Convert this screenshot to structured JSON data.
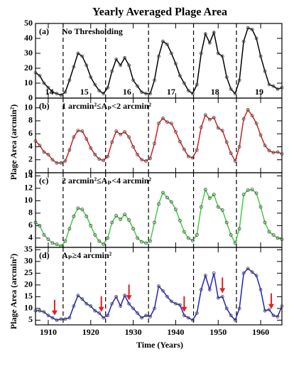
{
  "figure": {
    "title": "Yearly Averaged Plage Area",
    "xlabel": "Time (Years)",
    "ylabels": [
      "Plage Area (arcmin²)",
      "Plage Area (arcmin²)"
    ],
    "minima": [
      1913.5,
      1923.5,
      1933.6,
      1944.2,
      1954.3
    ],
    "cycles": [
      "14",
      "15",
      "16",
      "17",
      "18",
      "19"
    ]
  },
  "chart_data": [
    {
      "type": "line",
      "panel": "(a)",
      "label": "No Thresholding",
      "color": "#000000",
      "x": [
        1907,
        1908,
        1909,
        1910,
        1911,
        1912,
        1913,
        1914,
        1915,
        1916,
        1917,
        1918,
        1919,
        1920,
        1921,
        1922,
        1923,
        1924,
        1925,
        1926,
        1927,
        1928,
        1929,
        1930,
        1931,
        1932,
        1933,
        1934,
        1935,
        1936,
        1937,
        1938,
        1939,
        1940,
        1941,
        1942,
        1943,
        1944,
        1945,
        1946,
        1947,
        1948,
        1949,
        1950,
        1951,
        1952,
        1953,
        1954,
        1955,
        1956,
        1957,
        1958,
        1959,
        1960,
        1961,
        1962,
        1963,
        1964,
        1965
      ],
      "values": [
        17,
        15,
        10,
        7,
        4,
        3,
        2,
        4,
        12,
        21,
        30,
        28,
        22,
        14,
        9,
        5,
        3,
        7,
        18,
        26,
        22,
        27,
        22,
        12,
        8,
        4,
        3,
        3,
        12,
        28,
        38,
        36,
        30,
        23,
        15,
        10,
        5,
        3,
        9,
        30,
        43,
        37,
        44,
        30,
        28,
        14,
        6,
        3,
        12,
        38,
        47,
        46,
        40,
        28,
        18,
        9,
        8,
        6,
        7
      ],
      "xlim": [
        1907,
        1965
      ],
      "xticks": [
        1910,
        1920,
        1930,
        1940,
        1950,
        1960
      ],
      "ylim": [
        0,
        50
      ],
      "yticks": [
        0,
        10,
        20,
        30,
        40,
        50
      ]
    },
    {
      "type": "line",
      "panel": "(b)",
      "label": "1 arcmin²≤Aₚ<2 arcmin²",
      "color": "#cc2222",
      "x": [
        1907,
        1908,
        1909,
        1910,
        1911,
        1912,
        1913,
        1914,
        1915,
        1916,
        1917,
        1918,
        1919,
        1920,
        1921,
        1922,
        1923,
        1924,
        1925,
        1926,
        1927,
        1928,
        1929,
        1930,
        1931,
        1932,
        1933,
        1934,
        1935,
        1936,
        1937,
        1938,
        1939,
        1940,
        1941,
        1942,
        1943,
        1944,
        1945,
        1946,
        1947,
        1948,
        1949,
        1950,
        1951,
        1952,
        1953,
        1954,
        1955,
        1956,
        1957,
        1958,
        1959,
        1960,
        1961,
        1962,
        1963,
        1964,
        1965
      ],
      "values": [
        4.9,
        4.2,
        3.2,
        2.8,
        2.0,
        1.5,
        1.5,
        1.8,
        3.5,
        5.5,
        6.5,
        6.4,
        5.2,
        3.8,
        2.8,
        2.1,
        1.9,
        2.5,
        4.7,
        6.4,
        5.9,
        6.3,
        5.5,
        4.0,
        2.8,
        2.0,
        1.8,
        2.2,
        4.5,
        7.6,
        8.4,
        7.8,
        7.6,
        6.3,
        4.8,
        3.6,
        2.5,
        2.3,
        3.5,
        7.0,
        8.9,
        8.2,
        8.5,
        6.9,
        6.5,
        4.7,
        3.0,
        1.8,
        4.0,
        8.3,
        9.7,
        8.8,
        7.6,
        5.8,
        4.2,
        3.4,
        3.1,
        3.2,
        2.9
      ],
      "xlim": [
        1907,
        1965
      ],
      "xticks": [
        1910,
        1920,
        1930,
        1940,
        1950,
        1960
      ],
      "ylim": [
        0,
        11.5
      ],
      "yticks": [
        0,
        2,
        4,
        6,
        8,
        10
      ]
    },
    {
      "type": "line",
      "panel": "(c)",
      "label": "2 arcmin²≤Aₚ<4 arcmin²",
      "color": "#44cc44",
      "x": [
        1907,
        1908,
        1909,
        1910,
        1911,
        1912,
        1913,
        1914,
        1915,
        1916,
        1917,
        1918,
        1919,
        1920,
        1921,
        1922,
        1923,
        1924,
        1925,
        1926,
        1927,
        1928,
        1929,
        1930,
        1931,
        1932,
        1933,
        1934,
        1935,
        1936,
        1937,
        1938,
        1939,
        1940,
        1941,
        1942,
        1943,
        1944,
        1945,
        1946,
        1947,
        1948,
        1949,
        1950,
        1951,
        1952,
        1953,
        1954,
        1955,
        1956,
        1957,
        1958,
        1959,
        1960,
        1961,
        1962,
        1963,
        1964,
        1965
      ],
      "values": [
        6.5,
        6.0,
        4.5,
        3.8,
        3.2,
        3.0,
        2.7,
        3.5,
        5.5,
        7.5,
        8.8,
        8.6,
        7.5,
        6.0,
        4.5,
        3.5,
        3.0,
        4.0,
        6.5,
        7.6,
        7.0,
        7.8,
        6.9,
        5.5,
        4.0,
        3.4,
        3.2,
        3.5,
        6.5,
        9.5,
        11.3,
        10.5,
        9.8,
        8.6,
        6.8,
        5.0,
        4.0,
        3.6,
        4.5,
        9.0,
        11.8,
        10.4,
        11.0,
        9.0,
        8.5,
        6.5,
        4.5,
        3.2,
        5.5,
        11.0,
        11.7,
        11.8,
        11.2,
        9.0,
        6.5,
        5.0,
        4.5,
        4.0,
        3.8
      ],
      "xlim": [
        1907,
        1965
      ],
      "xticks": [
        1910,
        1920,
        1930,
        1940,
        1950,
        1960
      ],
      "ylim": [
        2.5,
        14.5
      ],
      "yticks": [
        4,
        6,
        8,
        10,
        12,
        14
      ]
    },
    {
      "type": "line",
      "panel": "(d)",
      "label": "Aₚ≥4 arcmin²",
      "color": "#2222bb",
      "x": [
        1907,
        1908,
        1909,
        1910,
        1911,
        1912,
        1913,
        1914,
        1915,
        1916,
        1917,
        1918,
        1919,
        1920,
        1921,
        1922,
        1923,
        1924,
        1925,
        1926,
        1927,
        1928,
        1929,
        1930,
        1931,
        1932,
        1933,
        1934,
        1935,
        1936,
        1937,
        1938,
        1939,
        1940,
        1941,
        1942,
        1943,
        1944,
        1945,
        1946,
        1947,
        1948,
        1949,
        1950,
        1951,
        1952,
        1953,
        1954,
        1955,
        1956,
        1957,
        1958,
        1959,
        1960,
        1961,
        1962,
        1963,
        1964,
        1965
      ],
      "values": [
        9,
        9,
        8.5,
        7,
        6,
        5,
        5.5,
        5.5,
        6,
        11,
        15.5,
        14,
        12,
        11,
        9,
        8,
        6,
        7,
        12,
        15,
        11,
        15.5,
        12,
        10,
        8,
        6,
        7,
        6.5,
        10,
        19.5,
        17.5,
        15,
        13,
        12,
        11.5,
        7,
        6,
        5,
        8,
        18,
        24,
        18,
        25,
        14.5,
        15,
        10,
        7,
        5,
        10,
        25,
        27,
        25.5,
        24,
        18,
        9,
        9.5,
        7,
        6.5,
        11
      ],
      "xlim": [
        1907,
        1965
      ],
      "xticks": [
        1910,
        1920,
        1930,
        1940,
        1950,
        1960
      ],
      "ylim": [
        3,
        36
      ],
      "yticks": [
        5,
        10,
        15,
        20,
        25,
        30,
        35
      ],
      "arrows": [
        1911.5,
        1922.5,
        1929,
        1942,
        1951,
        1962.5
      ]
    }
  ]
}
